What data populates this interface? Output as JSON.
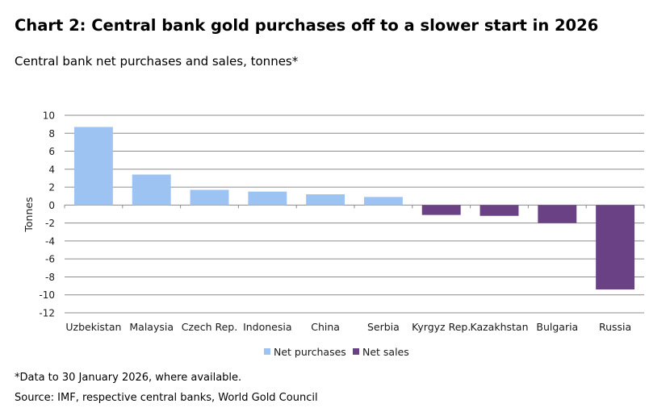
{
  "header": {
    "title": "Chart 2: Central bank gold purchases off to a slower start in 2026",
    "subtitle": "Central bank net purchases and sales, tonnes*"
  },
  "footer": {
    "note": "*Data to 30 January 2026, where available.",
    "source": "Source: IMF, respective central banks, World Gold Council"
  },
  "colors": {
    "net_purchases": "#9dc3f3",
    "net_sales": "#6a4185",
    "grid": "#8c8c8c"
  },
  "chart_data": {
    "type": "bar",
    "title": "Chart 2: Central bank gold purchases off to a slower start in 2026",
    "subtitle": "Central bank net purchases and sales, tonnes*",
    "xlabel": "",
    "ylabel": "Tonnes",
    "ylim": [
      -12,
      10
    ],
    "yticks": [
      10,
      8,
      6,
      4,
      2,
      0,
      -2,
      -4,
      -6,
      -8,
      -10,
      -12
    ],
    "grid": true,
    "legend_position": "bottom",
    "legend": [
      "Net purchases",
      "Net sales"
    ],
    "categories": [
      "Uzbekistan",
      "Malaysia",
      "Czech Rep.",
      "Indonesia",
      "China",
      "Serbia",
      "Kyrgyz Rep.",
      "Kazakhstan",
      "Bulgaria",
      "Russia"
    ],
    "series": [
      {
        "name": "Net purchases",
        "values": [
          8.7,
          3.4,
          1.7,
          1.5,
          1.2,
          0.9,
          null,
          null,
          null,
          null
        ]
      },
      {
        "name": "Net sales",
        "values": [
          null,
          null,
          null,
          null,
          null,
          null,
          -1.1,
          -1.2,
          -2.0,
          -9.4
        ]
      }
    ]
  }
}
